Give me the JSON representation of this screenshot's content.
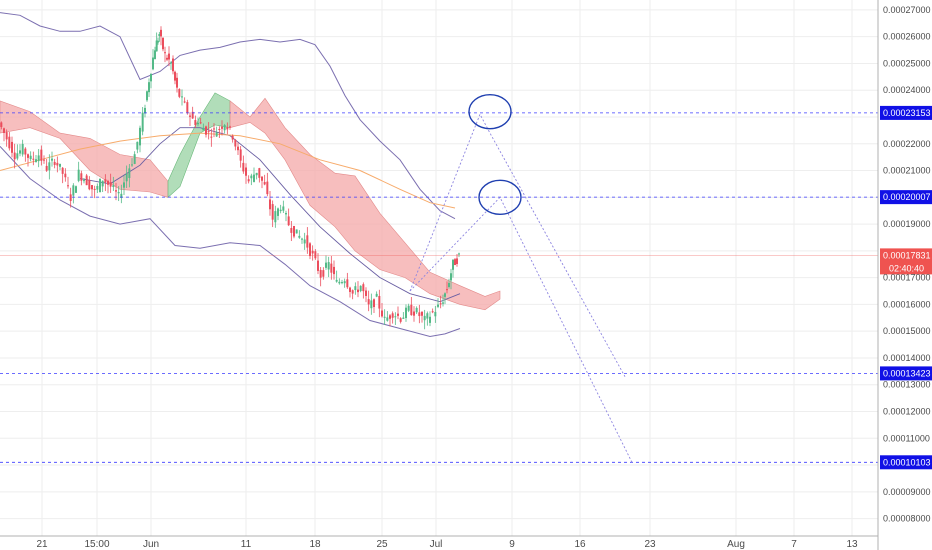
{
  "chart_data": {
    "type": "line",
    "title": "",
    "xlabel": "",
    "ylabel": "",
    "grid": true,
    "colors": {
      "up": "#53b987",
      "down": "#eb4d5c",
      "cloud_bear": "#f4a8a8",
      "cloud_bull": "#9ed5a8",
      "bollinger": "#7b6fb0",
      "ma": "#f7ab6b",
      "level_line": "#3c3cff",
      "level_tag": "#1010e6",
      "price_tag": "#ef5350",
      "annotation": "#1f3fb0"
    },
    "x_ticks": [
      "21",
      "15:00",
      "Jun",
      "11",
      "18",
      "25",
      "Jul",
      "9",
      "16",
      "23",
      "Aug",
      "7",
      "13"
    ],
    "y_ticks": [
      "0.00027000",
      "0.00026000",
      "0.00025000",
      "0.00024000",
      "0.00023000",
      "0.00022000",
      "0.00021000",
      "0.00020000",
      "0.00019000",
      "0.00018000",
      "0.00017000",
      "0.00016000",
      "0.00015000",
      "0.00014000",
      "0.00013000",
      "0.00012000",
      "0.00011000",
      "0.00010000",
      "0.00009000",
      "0.00008000"
    ],
    "ylim": [
      7.35e-05,
      0.0002737
    ],
    "price_levels": [
      {
        "label": "0.00023153",
        "value": 0.00023153
      },
      {
        "label": "0.00020007",
        "value": 0.00020007
      },
      {
        "label": "0.00013423",
        "value": 0.00013423
      },
      {
        "label": "0.00010103",
        "value": 0.00010103
      }
    ],
    "current_price": {
      "label": "0.00017831",
      "value": 0.00017831,
      "countdown": "02:40:40"
    },
    "close_series": [
      {
        "x": 0,
        "y": 0.000228
      },
      {
        "x": 8,
        "y": 0.000222
      },
      {
        "x": 16,
        "y": 0.000216
      },
      {
        "x": 24,
        "y": 0.000218
      },
      {
        "x": 32,
        "y": 0.000214
      },
      {
        "x": 40,
        "y": 0.000216
      },
      {
        "x": 48,
        "y": 0.000211
      },
      {
        "x": 56,
        "y": 0.000214
      },
      {
        "x": 64,
        "y": 0.000209
      },
      {
        "x": 72,
        "y": 0.0002
      },
      {
        "x": 80,
        "y": 0.000209
      },
      {
        "x": 88,
        "y": 0.000206
      },
      {
        "x": 96,
        "y": 0.000202
      },
      {
        "x": 104,
        "y": 0.000207
      },
      {
        "x": 112,
        "y": 0.000204
      },
      {
        "x": 120,
        "y": 0.0002
      },
      {
        "x": 128,
        "y": 0.000209
      },
      {
        "x": 136,
        "y": 0.000216
      },
      {
        "x": 144,
        "y": 0.00023
      },
      {
        "x": 150,
        "y": 0.000244
      },
      {
        "x": 156,
        "y": 0.000256
      },
      {
        "x": 160,
        "y": 0.000261
      },
      {
        "x": 166,
        "y": 0.000253
      },
      {
        "x": 172,
        "y": 0.00025
      },
      {
        "x": 178,
        "y": 0.00024
      },
      {
        "x": 186,
        "y": 0.000234
      },
      {
        "x": 194,
        "y": 0.000229
      },
      {
        "x": 202,
        "y": 0.000227
      },
      {
        "x": 210,
        "y": 0.000224
      },
      {
        "x": 218,
        "y": 0.000225
      },
      {
        "x": 226,
        "y": 0.000228
      },
      {
        "x": 234,
        "y": 0.000223
      },
      {
        "x": 242,
        "y": 0.000213
      },
      {
        "x": 250,
        "y": 0.000206
      },
      {
        "x": 258,
        "y": 0.00021
      },
      {
        "x": 266,
        "y": 0.000204
      },
      {
        "x": 274,
        "y": 0.000192
      },
      {
        "x": 282,
        "y": 0.000197
      },
      {
        "x": 290,
        "y": 0.00019
      },
      {
        "x": 298,
        "y": 0.000186
      },
      {
        "x": 306,
        "y": 0.000184
      },
      {
        "x": 314,
        "y": 0.000178
      },
      {
        "x": 322,
        "y": 0.000171
      },
      {
        "x": 330,
        "y": 0.000175
      },
      {
        "x": 338,
        "y": 0.000168
      },
      {
        "x": 346,
        "y": 0.00017
      },
      {
        "x": 354,
        "y": 0.000164
      },
      {
        "x": 362,
        "y": 0.000167
      },
      {
        "x": 370,
        "y": 0.000159
      },
      {
        "x": 378,
        "y": 0.000162
      },
      {
        "x": 386,
        "y": 0.000154
      },
      {
        "x": 394,
        "y": 0.000157
      },
      {
        "x": 402,
        "y": 0.000155
      },
      {
        "x": 410,
        "y": 0.000158
      },
      {
        "x": 418,
        "y": 0.000157
      },
      {
        "x": 426,
        "y": 0.000154
      },
      {
        "x": 434,
        "y": 0.000157
      },
      {
        "x": 442,
        "y": 0.00016
      },
      {
        "x": 448,
        "y": 0.000166
      },
      {
        "x": 454,
        "y": 0.000175
      },
      {
        "x": 460,
        "y": 0.000178
      }
    ],
    "bollinger_upper": [
      {
        "x": 0,
        "y": 0.000269
      },
      {
        "x": 20,
        "y": 0.000268
      },
      {
        "x": 40,
        "y": 0.000264
      },
      {
        "x": 60,
        "y": 0.000262
      },
      {
        "x": 80,
        "y": 0.000262
      },
      {
        "x": 100,
        "y": 0.000264
      },
      {
        "x": 120,
        "y": 0.00026
      },
      {
        "x": 140,
        "y": 0.000244
      },
      {
        "x": 160,
        "y": 0.000247
      },
      {
        "x": 180,
        "y": 0.000253
      },
      {
        "x": 200,
        "y": 0.000255
      },
      {
        "x": 220,
        "y": 0.000256
      },
      {
        "x": 240,
        "y": 0.000258
      },
      {
        "x": 260,
        "y": 0.000259
      },
      {
        "x": 280,
        "y": 0.000258
      },
      {
        "x": 300,
        "y": 0.000259
      },
      {
        "x": 315,
        "y": 0.000257
      },
      {
        "x": 330,
        "y": 0.000249
      },
      {
        "x": 345,
        "y": 0.000238
      },
      {
        "x": 360,
        "y": 0.000229
      },
      {
        "x": 380,
        "y": 0.000221
      },
      {
        "x": 400,
        "y": 0.000214
      },
      {
        "x": 420,
        "y": 0.000203
      },
      {
        "x": 440,
        "y": 0.000195
      },
      {
        "x": 455,
        "y": 0.000192
      }
    ],
    "bollinger_lower": [
      {
        "x": 0,
        "y": 0.000219
      },
      {
        "x": 30,
        "y": 0.000207
      },
      {
        "x": 60,
        "y": 0.000199
      },
      {
        "x": 90,
        "y": 0.000193
      },
      {
        "x": 120,
        "y": 0.00019
      },
      {
        "x": 150,
        "y": 0.000192
      },
      {
        "x": 175,
        "y": 0.000182
      },
      {
        "x": 200,
        "y": 0.000181
      },
      {
        "x": 230,
        "y": 0.000183
      },
      {
        "x": 260,
        "y": 0.000182
      },
      {
        "x": 285,
        "y": 0.000175
      },
      {
        "x": 310,
        "y": 0.000167
      },
      {
        "x": 340,
        "y": 0.000161
      },
      {
        "x": 370,
        "y": 0.000154
      },
      {
        "x": 400,
        "y": 0.000151
      },
      {
        "x": 430,
        "y": 0.000148
      },
      {
        "x": 445,
        "y": 0.000149
      },
      {
        "x": 460,
        "y": 0.000151
      }
    ],
    "bollinger_basis": [
      {
        "x": 80,
        "y": 0.000207
      },
      {
        "x": 110,
        "y": 0.000205
      },
      {
        "x": 140,
        "y": 0.000212
      },
      {
        "x": 160,
        "y": 0.00022
      },
      {
        "x": 180,
        "y": 0.000226
      },
      {
        "x": 200,
        "y": 0.000226
      },
      {
        "x": 230,
        "y": 0.000223
      },
      {
        "x": 260,
        "y": 0.000214
      },
      {
        "x": 290,
        "y": 0.000201
      },
      {
        "x": 320,
        "y": 0.000189
      },
      {
        "x": 350,
        "y": 0.000179
      },
      {
        "x": 380,
        "y": 0.00017
      },
      {
        "x": 410,
        "y": 0.000164
      },
      {
        "x": 440,
        "y": 0.000161
      },
      {
        "x": 460,
        "y": 0.000164
      }
    ],
    "moving_average": [
      {
        "x": 0,
        "y": 0.00021
      },
      {
        "x": 40,
        "y": 0.000214
      },
      {
        "x": 80,
        "y": 0.000218
      },
      {
        "x": 120,
        "y": 0.000221
      },
      {
        "x": 160,
        "y": 0.000223
      },
      {
        "x": 200,
        "y": 0.000224
      },
      {
        "x": 240,
        "y": 0.000223
      },
      {
        "x": 280,
        "y": 0.00022
      },
      {
        "x": 320,
        "y": 0.000214
      },
      {
        "x": 360,
        "y": 0.00021
      },
      {
        "x": 400,
        "y": 0.000203
      },
      {
        "x": 430,
        "y": 0.000198
      },
      {
        "x": 455,
        "y": 0.000196
      }
    ],
    "cloud_top": [
      {
        "x": 0,
        "y": 0.000236
      },
      {
        "x": 30,
        "y": 0.000232
      },
      {
        "x": 60,
        "y": 0.000224
      },
      {
        "x": 90,
        "y": 0.000222
      },
      {
        "x": 120,
        "y": 0.000216
      },
      {
        "x": 150,
        "y": 0.000214
      },
      {
        "x": 168,
        "y": 0.000206
      },
      {
        "x": 180,
        "y": 0.000216
      },
      {
        "x": 200,
        "y": 0.00023
      },
      {
        "x": 215,
        "y": 0.000239
      },
      {
        "x": 230,
        "y": 0.000236
      },
      {
        "x": 250,
        "y": 0.00023
      },
      {
        "x": 265,
        "y": 0.000237
      },
      {
        "x": 285,
        "y": 0.000226
      },
      {
        "x": 310,
        "y": 0.000216
      },
      {
        "x": 335,
        "y": 0.000209
      },
      {
        "x": 355,
        "y": 0.000208
      },
      {
        "x": 380,
        "y": 0.000194
      },
      {
        "x": 405,
        "y": 0.000183
      },
      {
        "x": 430,
        "y": 0.000172
      },
      {
        "x": 460,
        "y": 0.000167
      },
      {
        "x": 485,
        "y": 0.000163
      },
      {
        "x": 500,
        "y": 0.000165
      }
    ],
    "cloud_bottom": [
      {
        "x": 0,
        "y": 0.000224
      },
      {
        "x": 30,
        "y": 0.000226
      },
      {
        "x": 60,
        "y": 0.000222
      },
      {
        "x": 90,
        "y": 0.00021
      },
      {
        "x": 120,
        "y": 0.000203
      },
      {
        "x": 150,
        "y": 0.000202
      },
      {
        "x": 168,
        "y": 0.0002
      },
      {
        "x": 180,
        "y": 0.000204
      },
      {
        "x": 200,
        "y": 0.000224
      },
      {
        "x": 215,
        "y": 0.000227
      },
      {
        "x": 230,
        "y": 0.000226
      },
      {
        "x": 250,
        "y": 0.000228
      },
      {
        "x": 265,
        "y": 0.000224
      },
      {
        "x": 285,
        "y": 0.000214
      },
      {
        "x": 310,
        "y": 0.000197
      },
      {
        "x": 335,
        "y": 0.000189
      },
      {
        "x": 355,
        "y": 0.00018
      },
      {
        "x": 380,
        "y": 0.000173
      },
      {
        "x": 405,
        "y": 0.00017
      },
      {
        "x": 430,
        "y": 0.000164
      },
      {
        "x": 460,
        "y": 0.00016
      },
      {
        "x": 485,
        "y": 0.000158
      },
      {
        "x": 500,
        "y": 0.000162
      }
    ],
    "projection_paths": [
      [
        {
          "x": 410,
          "y": 0.000165
        },
        {
          "x": 480,
          "y": 0.000231
        },
        {
          "x": 490,
          "y": 0.000224
        },
        {
          "x": 625,
          "y": 0.000133
        }
      ],
      [
        {
          "x": 410,
          "y": 0.000165
        },
        {
          "x": 500,
          "y": 0.0002
        },
        {
          "x": 632,
          "y": 0.000101
        }
      ]
    ],
    "annotation_circles": [
      {
        "cx": 490,
        "cy": 0.000232
      },
      {
        "cx": 500,
        "cy": 0.0002
      }
    ]
  }
}
